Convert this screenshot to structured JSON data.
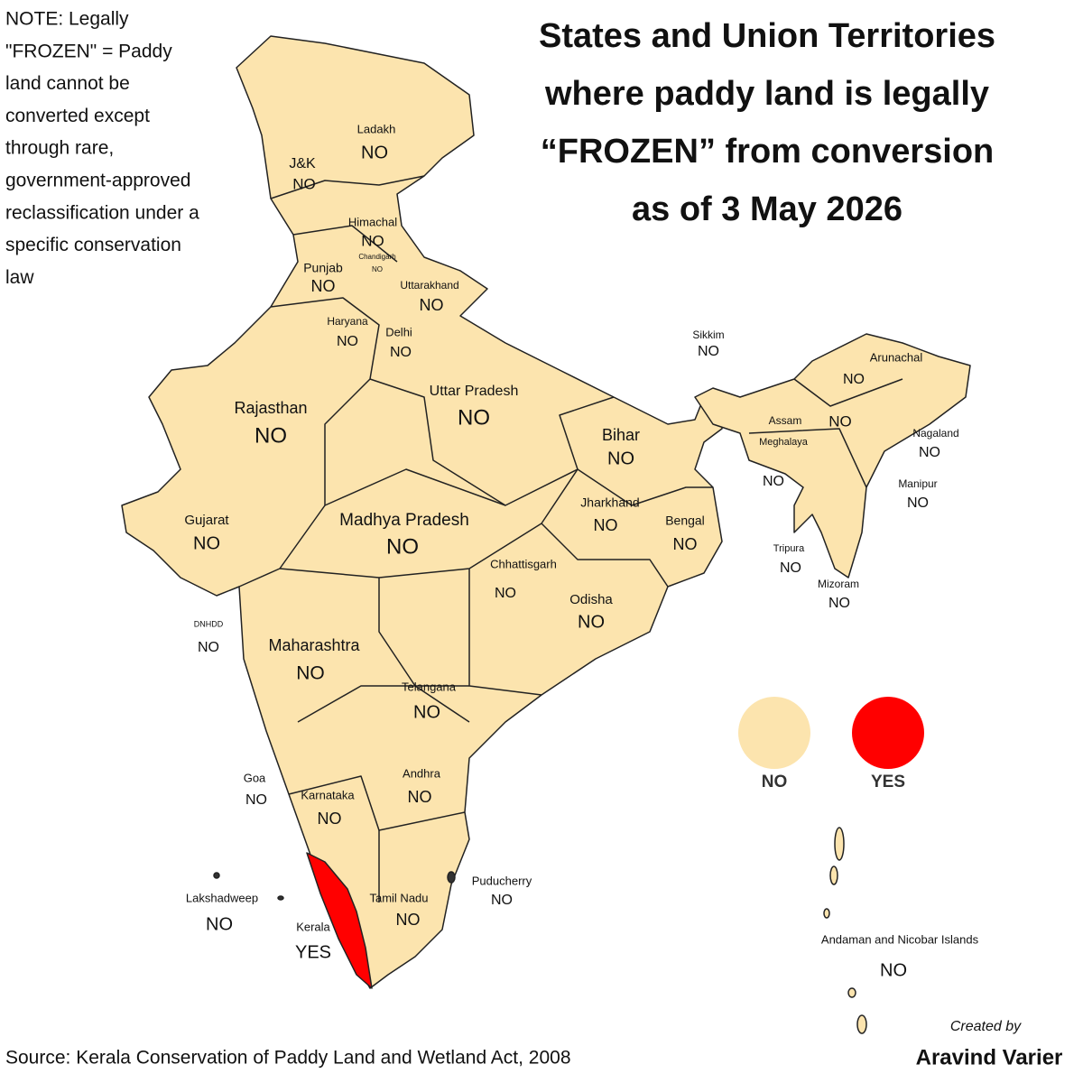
{
  "title": [
    "States and Union Territories",
    "where paddy land is legally",
    "“FROZEN” from conversion",
    "as of 3 May 2026"
  ],
  "note": [
    "NOTE: Legally",
    "\"FROZEN\" = Paddy",
    "land cannot be",
    "converted except",
    "through rare,",
    "government-approved",
    "reclassification under a",
    "specific conservation",
    "law"
  ],
  "legend": [
    {
      "label": "NO",
      "color": "#fce4ae"
    },
    {
      "label": "YES",
      "color": "#ff0000"
    }
  ],
  "regions": [
    {
      "name": "Ladakh",
      "status": "NO"
    },
    {
      "name": "J&K",
      "status": "NO"
    },
    {
      "name": "Himachal",
      "status": "NO"
    },
    {
      "name": "Chandigarh",
      "status": "NO"
    },
    {
      "name": "Punjab",
      "status": "NO"
    },
    {
      "name": "Uttarakhand",
      "status": "NO"
    },
    {
      "name": "Haryana",
      "status": "NO"
    },
    {
      "name": "Delhi",
      "status": "NO"
    },
    {
      "name": "Uttar Pradesh",
      "status": "NO"
    },
    {
      "name": "Rajasthan",
      "status": "NO"
    },
    {
      "name": "Bihar",
      "status": "NO"
    },
    {
      "name": "Sikkim",
      "status": "NO"
    },
    {
      "name": "Arunachal",
      "status": "NO"
    },
    {
      "name": "Assam",
      "status": "NO"
    },
    {
      "name": "Meghalaya",
      "status": "NO"
    },
    {
      "name": "Nagaland",
      "status": "NO"
    },
    {
      "name": "Manipur",
      "status": "NO"
    },
    {
      "name": "Tripura",
      "status": "NO"
    },
    {
      "name": "Mizoram",
      "status": "NO"
    },
    {
      "name": "Jharkhand",
      "status": "NO"
    },
    {
      "name": "Bengal",
      "status": "NO"
    },
    {
      "name": "Gujarat",
      "status": "NO"
    },
    {
      "name": "Madhya Pradesh",
      "status": "NO"
    },
    {
      "name": "Chhattisgarh",
      "status": "NO"
    },
    {
      "name": "Odisha",
      "status": "NO"
    },
    {
      "name": "DNHDD",
      "status": "NO"
    },
    {
      "name": "Maharashtra",
      "status": "NO"
    },
    {
      "name": "Telangana",
      "status": "NO"
    },
    {
      "name": "Goa",
      "status": "NO"
    },
    {
      "name": "Andhra",
      "status": "NO"
    },
    {
      "name": "Karnataka",
      "status": "NO"
    },
    {
      "name": "Puducherry",
      "status": "NO"
    },
    {
      "name": "Tamil Nadu",
      "status": "NO"
    },
    {
      "name": "Lakshadweep",
      "status": "NO"
    },
    {
      "name": "Kerala",
      "status": "YES"
    },
    {
      "name": "Andaman and Nicobar Islands",
      "status": "NO"
    }
  ],
  "source": "Source: Kerala Conservation of Paddy Land and Wetland Act, 2008",
  "credit": {
    "prefix": "Created by",
    "author": "Aravind Varier"
  }
}
